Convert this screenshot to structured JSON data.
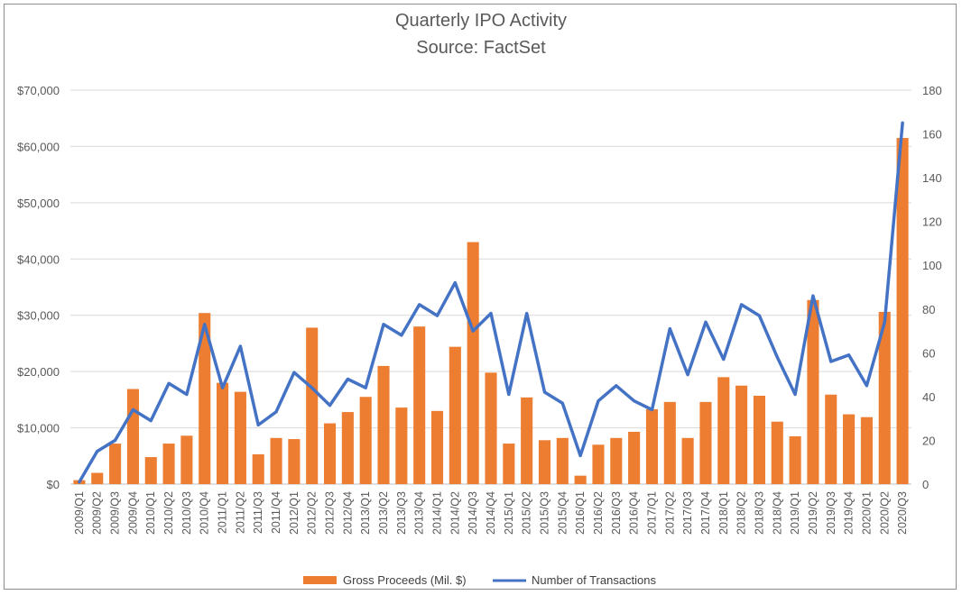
{
  "chart_data": {
    "type": "bar",
    "title": "Quarterly IPO Activity",
    "subtitle": "Source: FactSet",
    "categories": [
      "2009/Q1",
      "2009/Q2",
      "2009/Q3",
      "2009/Q4",
      "2010/Q1",
      "2010/Q2",
      "2010/Q3",
      "2010/Q4",
      "2011/Q1",
      "2011/Q2",
      "2011/Q3",
      "2011/Q4",
      "2012/Q1",
      "2012/Q2",
      "2012/Q3",
      "2012/Q4",
      "2013/Q1",
      "2013/Q2",
      "2013/Q3",
      "2013/Q4",
      "2014/Q1",
      "2014/Q2",
      "2014/Q3",
      "2014/Q4",
      "2015/Q1",
      "2015/Q2",
      "2015/Q3",
      "2015/Q4",
      "2016/Q1",
      "2016/Q2",
      "2016/Q3",
      "2016/Q4",
      "2017/Q1",
      "2017/Q2",
      "2017/Q3",
      "2017/Q4",
      "2018/Q1",
      "2018/Q2",
      "2018/Q3",
      "2018/Q4",
      "2019/Q1",
      "2019/Q2",
      "2019/Q3",
      "2019/Q4",
      "2020/Q1",
      "2020/Q2",
      "2020/Q3"
    ],
    "series": [
      {
        "name": "Gross Proceeds (Mil. $)",
        "type": "bar",
        "axis": "left",
        "color": "#ed7d31",
        "values": [
          700,
          2000,
          7200,
          16900,
          4800,
          7200,
          8600,
          30400,
          18000,
          16400,
          5300,
          8200,
          8000,
          27800,
          10800,
          12800,
          15500,
          21000,
          13600,
          28000,
          13000,
          24400,
          43000,
          19800,
          7200,
          15400,
          7800,
          8200,
          1500,
          7000,
          8200,
          9300,
          13300,
          14600,
          8200,
          14600,
          19000,
          17500,
          15700,
          11100,
          8500,
          32700,
          15900,
          12400,
          11900,
          30600,
          61500
        ]
      },
      {
        "name": "Number of Transactions",
        "type": "line",
        "axis": "right",
        "color": "#4472c4",
        "values": [
          1,
          15,
          20,
          34,
          29,
          46,
          41,
          73,
          44,
          63,
          27,
          33,
          51,
          44,
          36,
          48,
          44,
          73,
          68,
          82,
          77,
          92,
          70,
          78,
          41,
          78,
          42,
          37,
          13,
          38,
          45,
          38,
          34,
          71,
          50,
          74,
          57,
          82,
          77,
          58,
          41,
          86,
          56,
          59,
          45,
          74,
          165
        ]
      }
    ],
    "y_left": {
      "min": 0,
      "max": 70000,
      "step": 10000,
      "tick_labels": [
        "$0",
        "$10,000",
        "$20,000",
        "$30,000",
        "$40,000",
        "$50,000",
        "$60,000",
        "$70,000"
      ]
    },
    "y_right": {
      "min": 0,
      "max": 180,
      "step": 20,
      "tick_labels": [
        "0",
        "20",
        "40",
        "60",
        "80",
        "100",
        "120",
        "140",
        "160",
        "180"
      ]
    },
    "grid": true,
    "legend_position": "bottom"
  }
}
